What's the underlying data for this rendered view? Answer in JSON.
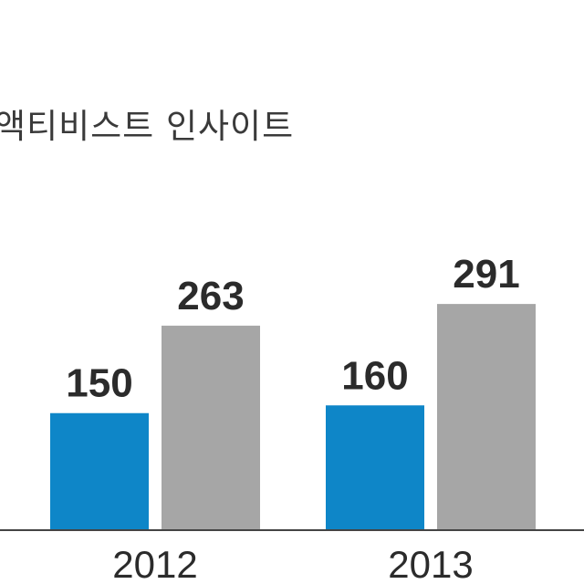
{
  "source_label": "액티비스트 인사이트",
  "colors": {
    "series_a": "#0e86c8",
    "series_b": "#a6a6a6",
    "text": "#2b2b2b",
    "axis": "#444444"
  },
  "chart_data": {
    "type": "bar",
    "categories": [
      "2012",
      "2013"
    ],
    "series": [
      {
        "values": [
          150,
          160
        ]
      },
      {
        "values": [
          263,
          291
        ]
      }
    ],
    "ylim": [
      0,
      550
    ],
    "grid": false,
    "legend": "none"
  }
}
